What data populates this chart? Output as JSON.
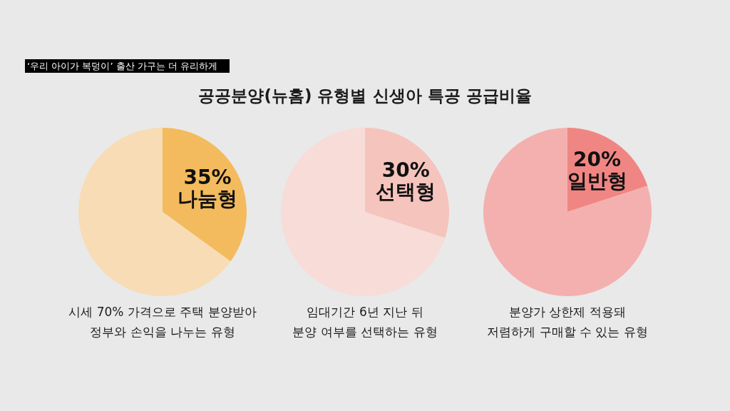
{
  "chart_data": [
    {
      "type": "pie",
      "title": "공공분양(뉴홈) 유형별 신생아 특공 공급비율",
      "subtitle": "‘우리 아이가 복덩이’ 출산 가구는 더 유리하게",
      "categories": [
        "나눔형",
        null
      ],
      "values": [
        35,
        65
      ],
      "colors": [
        "#f3bb5e",
        "#f7dcb5"
      ],
      "value_labels": [
        "35%",
        null
      ],
      "annotations": [
        "시세 70% 가격으로 주택 분양받아",
        "정부와 손익을 나누는 유형"
      ]
    },
    {
      "type": "pie",
      "categories": [
        "선택형",
        null
      ],
      "values": [
        30,
        70
      ],
      "colors": [
        "#f5c4bd",
        "#f7dcd8"
      ],
      "value_labels": [
        "30%",
        null
      ],
      "annotations": [
        "임대기간 6년 지난 뒤",
        "분양 여부를 선택하는 유형"
      ]
    },
    {
      "type": "pie",
      "categories": [
        "일반형",
        null
      ],
      "values": [
        20,
        80
      ],
      "colors": [
        "#f08683",
        "#f4b0ae"
      ],
      "value_labels": [
        "20%",
        null
      ],
      "annotations": [
        "분양가 상한제 적용돼",
        "저렴하게 구매할 수 있는 유형"
      ]
    }
  ]
}
